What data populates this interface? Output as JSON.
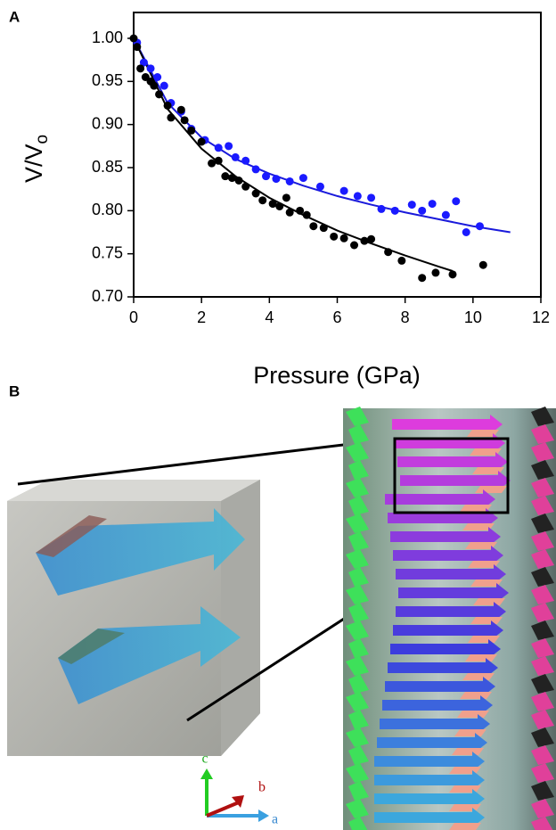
{
  "chart_data": {
    "type": "scatter",
    "panel_label": "A",
    "x_label": "Pressure (GPa)",
    "y_label": "V/V",
    "y_label_sub": "o",
    "xlim": [
      0,
      12
    ],
    "xticks": [
      0,
      2,
      4,
      6,
      8,
      10,
      12
    ],
    "ylim": [
      0.7,
      1.03
    ],
    "yticks": [
      {
        "value": 0.7,
        "label": "0.70"
      },
      {
        "value": 0.75,
        "label": "0.75"
      },
      {
        "value": 0.8,
        "label": "0.80"
      },
      {
        "value": 0.85,
        "label": "0.85"
      },
      {
        "value": 0.9,
        "label": "0.90"
      },
      {
        "value": 0.95,
        "label": "0.95"
      },
      {
        "value": 1.0,
        "label": "1.00"
      }
    ],
    "series": [
      {
        "type": "line",
        "color": "#1a1adb",
        "x": [
          0,
          1,
          2,
          3,
          4,
          5,
          6,
          7,
          8,
          9,
          10,
          11.1
        ],
        "values": [
          1.0,
          0.925,
          0.885,
          0.86,
          0.843,
          0.829,
          0.817,
          0.807,
          0.798,
          0.79,
          0.782,
          0.775
        ]
      },
      {
        "type": "line",
        "color": "#000000",
        "x": [
          0,
          1,
          2,
          3,
          4,
          5,
          6,
          7,
          8,
          9,
          9.4
        ],
        "values": [
          1.0,
          0.918,
          0.872,
          0.84,
          0.815,
          0.795,
          0.777,
          0.762,
          0.748,
          0.735,
          0.73
        ]
      },
      {
        "type": "scatter",
        "color": "#1a1aff",
        "x": [
          0.1,
          0.3,
          0.5,
          0.7,
          0.9,
          1.1,
          1.4,
          1.7,
          2.1,
          2.5,
          2.8,
          3.0,
          3.3,
          3.6,
          3.9,
          4.2,
          4.6,
          5.0,
          5.5,
          6.2,
          6.6,
          7.0,
          7.3,
          7.7,
          8.2,
          8.5,
          8.8,
          9.2,
          9.5,
          9.8,
          10.2
        ],
        "values": [
          0.995,
          0.972,
          0.965,
          0.955,
          0.945,
          0.925,
          0.915,
          0.895,
          0.882,
          0.873,
          0.875,
          0.862,
          0.858,
          0.848,
          0.84,
          0.837,
          0.834,
          0.838,
          0.828,
          0.823,
          0.817,
          0.815,
          0.802,
          0.8,
          0.807,
          0.8,
          0.808,
          0.795,
          0.811,
          0.775,
          0.782
        ]
      },
      {
        "type": "scatter",
        "color": "#000000",
        "x": [
          0.0,
          0.1,
          0.2,
          0.35,
          0.5,
          0.6,
          0.75,
          1.0,
          1.1,
          1.4,
          1.5,
          1.7,
          2.0,
          2.3,
          2.5,
          2.7,
          2.9,
          3.1,
          3.3,
          3.6,
          3.8,
          4.1,
          4.3,
          4.5,
          4.6,
          4.9,
          5.1,
          5.3,
          5.6,
          5.9,
          6.2,
          6.5,
          6.8,
          7.0,
          7.5,
          7.9,
          8.5,
          8.9,
          9.4,
          10.3
        ],
        "values": [
          1.0,
          0.99,
          0.965,
          0.955,
          0.95,
          0.945,
          0.935,
          0.922,
          0.908,
          0.917,
          0.905,
          0.893,
          0.88,
          0.855,
          0.858,
          0.84,
          0.838,
          0.835,
          0.828,
          0.82,
          0.812,
          0.808,
          0.805,
          0.815,
          0.798,
          0.8,
          0.795,
          0.782,
          0.78,
          0.77,
          0.768,
          0.76,
          0.765,
          0.767,
          0.752,
          0.742,
          0.722,
          0.728,
          0.726,
          0.737
        ]
      }
    ]
  },
  "panel_b": {
    "label": "B",
    "axis_c": "c",
    "axis_b": "b",
    "axis_a": "a"
  }
}
